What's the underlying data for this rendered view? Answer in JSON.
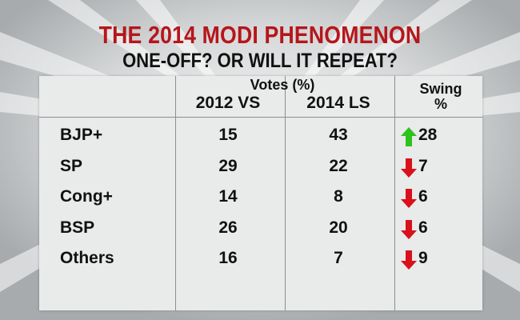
{
  "title": "THE 2014 MODI PHENOMENON",
  "subtitle": "ONE-OFF? OR WILL IT REPEAT?",
  "colors": {
    "title_red": "#b5161b",
    "arrow_up": "#2fc21d",
    "arrow_down": "#d8111c",
    "panel": "#e9eaea",
    "background": "#b9bcbd"
  },
  "chart_data": {
    "type": "table",
    "title": "THE 2014 MODI PHENOMENON",
    "subtitle": "ONE-OFF? OR WILL IT REPEAT?",
    "group_header": "Votes (%)",
    "columns": [
      "2012 VS",
      "2014 LS"
    ],
    "swing_header": "Swing %",
    "rows": [
      {
        "party": "BJP+",
        "vs2012": "15",
        "ls2014": "43",
        "swing": "28",
        "direction": "up"
      },
      {
        "party": "SP",
        "vs2012": "29",
        "ls2014": "22",
        "swing": "7",
        "direction": "down"
      },
      {
        "party": "Cong+",
        "vs2012": "14",
        "ls2014": "8",
        "swing": "6",
        "direction": "down"
      },
      {
        "party": "BSP",
        "vs2012": "26",
        "ls2014": "20",
        "swing": "6",
        "direction": "down"
      },
      {
        "party": "Others",
        "vs2012": "16",
        "ls2014": "7",
        "swing": "9",
        "direction": "down"
      }
    ]
  }
}
